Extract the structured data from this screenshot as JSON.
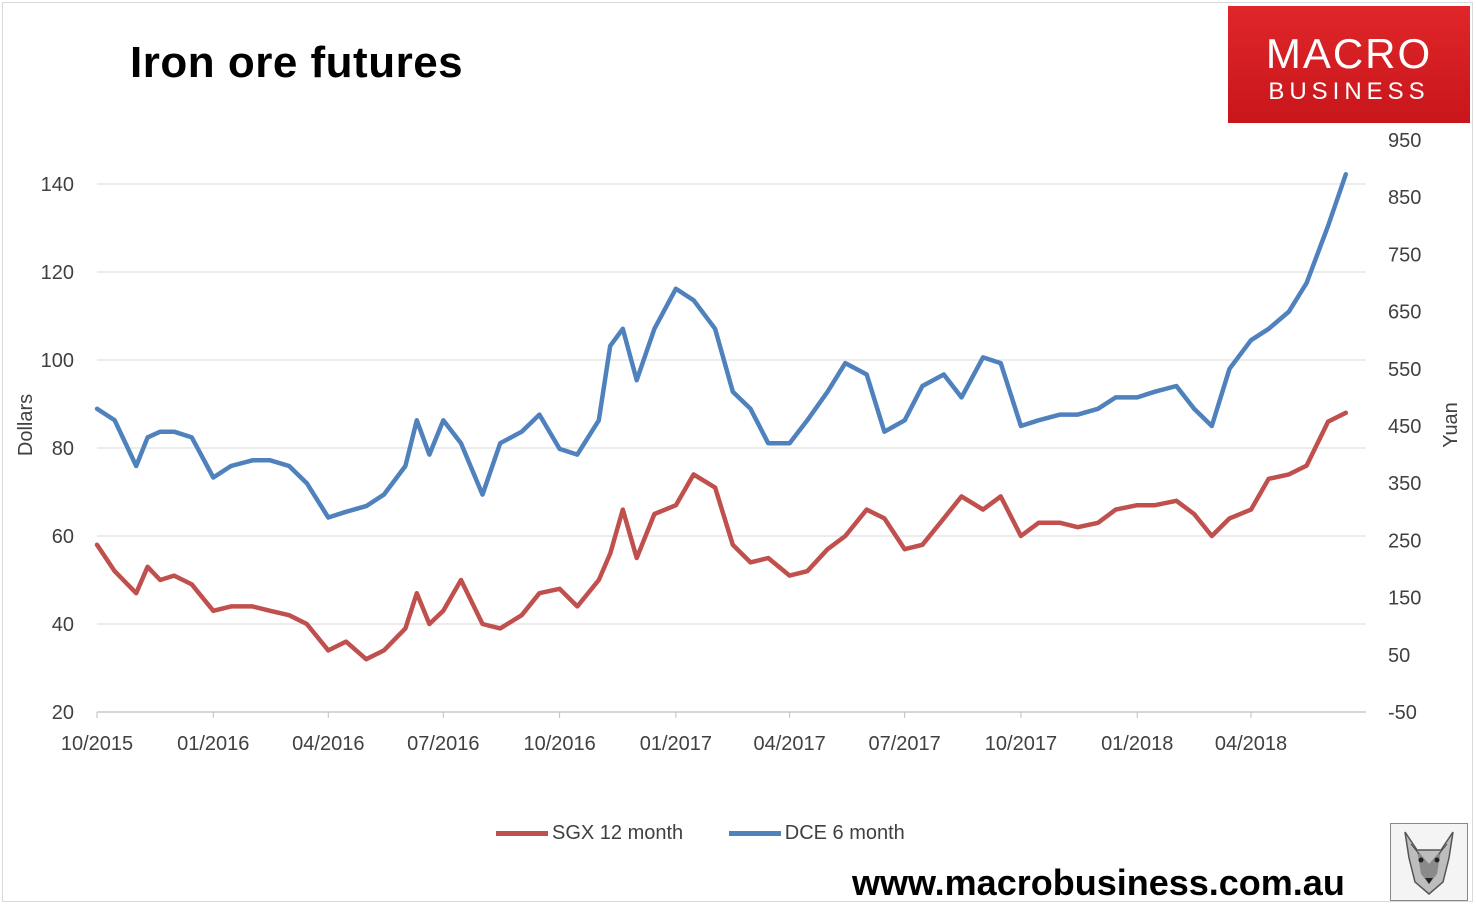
{
  "logo": {
    "line1": "MACRO",
    "line2": "BUSINESS",
    "color": "#d21d22"
  },
  "url_text": "www.macrobusiness.com.au",
  "wolf_icon": "wolf-portrait",
  "chart_data": {
    "type": "line",
    "title": "Iron ore futures",
    "ylabel": "Dollars",
    "y2label": "Yuan",
    "ylim": [
      20,
      150
    ],
    "y2lim": [
      -50,
      950
    ],
    "yticks": [
      20,
      40,
      60,
      80,
      100,
      120,
      140
    ],
    "y2ticks": [
      -50,
      50,
      150,
      250,
      350,
      450,
      550,
      650,
      750,
      850,
      950
    ],
    "xlim": [
      "2015-10-01",
      "2018-07-01"
    ],
    "xticks": [
      "10/2015",
      "01/2016",
      "04/2016",
      "07/2016",
      "10/2016",
      "01/2017",
      "04/2017",
      "07/2017",
      "10/2017",
      "01/2018",
      "04/2018"
    ],
    "grid": "horizontal",
    "legend_position": "bottom",
    "series": [
      {
        "name": "SGX 12 month",
        "axis": "left",
        "color": "#c0504d",
        "x": [
          "2015-10-01",
          "2015-10-15",
          "2015-11-01",
          "2015-11-10",
          "2015-11-20",
          "2015-12-01",
          "2015-12-15",
          "2016-01-01",
          "2016-01-15",
          "2016-02-01",
          "2016-02-15",
          "2016-03-01",
          "2016-03-15",
          "2016-04-01",
          "2016-04-15",
          "2016-05-01",
          "2016-05-15",
          "2016-06-01",
          "2016-06-10",
          "2016-06-20",
          "2016-07-01",
          "2016-07-15",
          "2016-08-01",
          "2016-08-15",
          "2016-09-01",
          "2016-09-15",
          "2016-10-01",
          "2016-10-15",
          "2016-11-01",
          "2016-11-10",
          "2016-11-20",
          "2016-12-01",
          "2016-12-15",
          "2017-01-01",
          "2017-01-15",
          "2017-02-01",
          "2017-02-15",
          "2017-03-01",
          "2017-03-15",
          "2017-04-01",
          "2017-04-15",
          "2017-05-01",
          "2017-05-15",
          "2017-06-01",
          "2017-06-15",
          "2017-07-01",
          "2017-07-15",
          "2017-08-01",
          "2017-08-15",
          "2017-09-01",
          "2017-09-15",
          "2017-10-01",
          "2017-10-15",
          "2017-11-01",
          "2017-11-15",
          "2017-12-01",
          "2017-12-15",
          "2018-01-01",
          "2018-01-15",
          "2018-02-01",
          "2018-02-15",
          "2018-03-01",
          "2018-03-15",
          "2018-04-01",
          "2018-04-15",
          "2018-05-01",
          "2018-05-15",
          "2018-06-01",
          "2018-06-15"
        ],
        "values": [
          58,
          52,
          47,
          53,
          50,
          51,
          49,
          43,
          44,
          44,
          43,
          42,
          40,
          34,
          36,
          32,
          34,
          39,
          47,
          40,
          43,
          50,
          40,
          39,
          42,
          47,
          48,
          44,
          50,
          56,
          66,
          55,
          65,
          67,
          74,
          71,
          58,
          54,
          55,
          51,
          52,
          57,
          60,
          66,
          64,
          57,
          58,
          64,
          69,
          66,
          69,
          60,
          63,
          63,
          62,
          63,
          66,
          67,
          67,
          68,
          65,
          60,
          64,
          66,
          73,
          74,
          76,
          86,
          88
        ]
      },
      {
        "name": "DCE 6 month",
        "axis": "right",
        "color": "#4f81bd",
        "x": [
          "2015-10-01",
          "2015-10-15",
          "2015-11-01",
          "2015-11-10",
          "2015-11-20",
          "2015-12-01",
          "2015-12-15",
          "2016-01-01",
          "2016-01-15",
          "2016-02-01",
          "2016-02-15",
          "2016-03-01",
          "2016-03-15",
          "2016-04-01",
          "2016-04-15",
          "2016-05-01",
          "2016-05-15",
          "2016-06-01",
          "2016-06-10",
          "2016-06-20",
          "2016-07-01",
          "2016-07-15",
          "2016-08-01",
          "2016-08-15",
          "2016-09-01",
          "2016-09-15",
          "2016-10-01",
          "2016-10-15",
          "2016-11-01",
          "2016-11-10",
          "2016-11-20",
          "2016-12-01",
          "2016-12-15",
          "2017-01-01",
          "2017-01-15",
          "2017-02-01",
          "2017-02-15",
          "2017-03-01",
          "2017-03-15",
          "2017-04-01",
          "2017-04-15",
          "2017-05-01",
          "2017-05-15",
          "2017-06-01",
          "2017-06-15",
          "2017-07-01",
          "2017-07-15",
          "2017-08-01",
          "2017-08-15",
          "2017-09-01",
          "2017-09-15",
          "2017-10-01",
          "2017-10-15",
          "2017-11-01",
          "2017-11-15",
          "2017-12-01",
          "2017-12-15",
          "2018-01-01",
          "2018-01-15",
          "2018-02-01",
          "2018-02-15",
          "2018-03-01",
          "2018-03-15",
          "2018-04-01",
          "2018-04-15",
          "2018-05-01",
          "2018-05-15",
          "2018-06-01",
          "2018-06-15"
        ],
        "values": [
          480,
          460,
          380,
          430,
          440,
          440,
          430,
          360,
          380,
          390,
          390,
          380,
          350,
          290,
          300,
          310,
          330,
          380,
          460,
          400,
          460,
          420,
          330,
          420,
          440,
          470,
          410,
          400,
          460,
          590,
          620,
          530,
          620,
          690,
          670,
          620,
          510,
          480,
          420,
          420,
          460,
          510,
          560,
          540,
          440,
          460,
          520,
          540,
          500,
          570,
          560,
          450,
          460,
          470,
          470,
          480,
          500,
          500,
          510,
          520,
          480,
          450,
          550,
          600,
          620,
          650,
          700,
          800,
          890
        ]
      }
    ]
  }
}
